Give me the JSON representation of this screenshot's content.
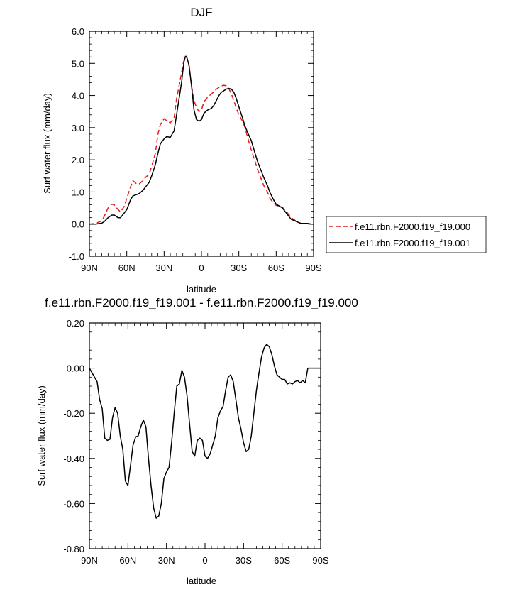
{
  "chart_data": [
    {
      "type": "line",
      "title": "DJF",
      "xlabel": "latitude",
      "ylabel": "Surf water flux (mm/day)",
      "xlim": [
        90,
        -90
      ],
      "ylim": [
        -1.0,
        6.0
      ],
      "xticks": [
        90,
        60,
        30,
        0,
        -30,
        -60,
        -90
      ],
      "xtick_labels": [
        "90N",
        "60N",
        "30N",
        "0",
        "30S",
        "60S",
        "90S"
      ],
      "yticks": [
        -1.0,
        0.0,
        1.0,
        2.0,
        3.0,
        4.0,
        5.0,
        6.0
      ],
      "ytick_labels": [
        "-1.0",
        "0.0",
        "1.0",
        "2.0",
        "3.0",
        "4.0",
        "5.0",
        "6.0"
      ],
      "legend_position": "right",
      "series": [
        {
          "name": "f.e11.rbn.F2000.f19_f19.000",
          "color": "#e41a1c",
          "dash": "dashed",
          "x": [
            90,
            85,
            80,
            78,
            75,
            72,
            70,
            67,
            65,
            62,
            60,
            57,
            55,
            52,
            50,
            47,
            45,
            42,
            40,
            37,
            35,
            33,
            30,
            28,
            25,
            22,
            20,
            18,
            16,
            15,
            14,
            13,
            12,
            10,
            8,
            6,
            4,
            2,
            0,
            -2,
            -5,
            -8,
            -10,
            -12,
            -14,
            -16,
            -18,
            -20,
            -22,
            -24,
            -26,
            -28,
            -30,
            -33,
            -35,
            -37,
            -40,
            -43,
            -45,
            -48,
            -50,
            -53,
            -55,
            -58,
            -60,
            -63,
            -65,
            -68,
            -70,
            -72,
            -75,
            -78,
            -80,
            -83,
            -85,
            -88,
            -90
          ],
          "y": [
            0.0,
            0.02,
            0.1,
            0.25,
            0.5,
            0.62,
            0.6,
            0.45,
            0.38,
            0.55,
            0.8,
            1.15,
            1.35,
            1.25,
            1.25,
            1.35,
            1.45,
            1.55,
            1.8,
            2.2,
            2.8,
            3.1,
            3.28,
            3.22,
            3.15,
            3.3,
            3.9,
            4.3,
            4.7,
            4.95,
            5.1,
            5.22,
            5.2,
            4.95,
            4.3,
            3.85,
            3.62,
            3.5,
            3.55,
            3.8,
            3.95,
            4.05,
            4.12,
            4.2,
            4.25,
            4.3,
            4.32,
            4.3,
            4.22,
            4.05,
            3.85,
            3.6,
            3.4,
            3.2,
            3.0,
            2.7,
            2.3,
            1.95,
            1.7,
            1.4,
            1.2,
            1.0,
            0.8,
            0.65,
            0.58,
            0.55,
            0.52,
            0.4,
            0.3,
            0.2,
            0.12,
            0.05,
            0.02,
            0.02,
            0.02,
            0.0,
            0.0
          ]
        },
        {
          "name": "f.e11.rbn.F2000.f19_f19.001",
          "color": "#000000",
          "dash": "solid",
          "x": [
            90,
            85,
            80,
            78,
            75,
            72,
            70,
            67,
            65,
            62,
            60,
            57,
            55,
            52,
            50,
            47,
            45,
            42,
            40,
            37,
            35,
            33,
            30,
            28,
            25,
            22,
            20,
            18,
            16,
            15,
            14,
            13,
            12,
            10,
            8,
            6,
            4,
            2,
            0,
            -2,
            -5,
            -8,
            -10,
            -12,
            -14,
            -16,
            -18,
            -20,
            -22,
            -24,
            -26,
            -28,
            -30,
            -33,
            -35,
            -37,
            -40,
            -43,
            -45,
            -48,
            -50,
            -53,
            -55,
            -58,
            -60,
            -63,
            -65,
            -68,
            -70,
            -72,
            -75,
            -78,
            -80,
            -83,
            -85,
            -88,
            -90
          ],
          "y": [
            0.0,
            0.0,
            0.03,
            0.08,
            0.2,
            0.28,
            0.28,
            0.2,
            0.2,
            0.35,
            0.45,
            0.75,
            0.88,
            0.92,
            0.95,
            1.05,
            1.15,
            1.3,
            1.5,
            1.85,
            2.2,
            2.5,
            2.65,
            2.72,
            2.7,
            2.9,
            3.4,
            3.9,
            4.4,
            4.75,
            5.05,
            5.2,
            5.22,
            4.95,
            4.3,
            3.55,
            3.25,
            3.2,
            3.25,
            3.45,
            3.55,
            3.6,
            3.7,
            3.85,
            4.0,
            4.1,
            4.15,
            4.2,
            4.22,
            4.2,
            4.1,
            3.9,
            3.65,
            3.3,
            3.05,
            2.85,
            2.6,
            2.2,
            1.95,
            1.65,
            1.45,
            1.2,
            0.98,
            0.75,
            0.62,
            0.55,
            0.5,
            0.35,
            0.25,
            0.15,
            0.1,
            0.05,
            0.02,
            0.02,
            0.02,
            0.0,
            0.0
          ]
        }
      ]
    },
    {
      "type": "line",
      "title": "f.e11.rbn.F2000.f19_f19.001 - f.e11.rbn.F2000.f19_f19.000",
      "xlabel": "latitude",
      "ylabel": "Surf water flux (mm/day)",
      "xlim": [
        90,
        -90
      ],
      "ylim": [
        -0.8,
        0.2
      ],
      "xticks": [
        90,
        60,
        30,
        0,
        -30,
        -60,
        -90
      ],
      "xtick_labels": [
        "90N",
        "60N",
        "30N",
        "0",
        "30S",
        "60S",
        "90S"
      ],
      "yticks": [
        -0.8,
        -0.6,
        -0.4,
        -0.2,
        0.0,
        0.2
      ],
      "ytick_labels": [
        "-0.80",
        "-0.60",
        "-0.40",
        "-0.20",
        "0.00",
        "0.20"
      ],
      "series": [
        {
          "name": "",
          "color": "#000000",
          "dash": "solid",
          "x": [
            90,
            88,
            86,
            84,
            82,
            80,
            78,
            76,
            74,
            72,
            70,
            68,
            66,
            64,
            62,
            60,
            58,
            56,
            54,
            52,
            50,
            48,
            46,
            44,
            42,
            40,
            38,
            36,
            34,
            32,
            30,
            28,
            26,
            24,
            22,
            20,
            18,
            16,
            14,
            12,
            10,
            8,
            6,
            4,
            2,
            0,
            -2,
            -4,
            -6,
            -8,
            -10,
            -12,
            -14,
            -16,
            -18,
            -20,
            -22,
            -24,
            -26,
            -28,
            -30,
            -32,
            -34,
            -36,
            -38,
            -40,
            -42,
            -44,
            -46,
            -48,
            -50,
            -52,
            -54,
            -56,
            -58,
            -60,
            -62,
            -64,
            -66,
            -68,
            -70,
            -72,
            -74,
            -76,
            -78,
            -80,
            -85,
            -90
          ],
          "y": [
            0.0,
            -0.02,
            -0.04,
            -0.06,
            -0.14,
            -0.18,
            -0.31,
            -0.32,
            -0.315,
            -0.22,
            -0.175,
            -0.2,
            -0.3,
            -0.36,
            -0.5,
            -0.52,
            -0.43,
            -0.34,
            -0.305,
            -0.3,
            -0.26,
            -0.23,
            -0.26,
            -0.4,
            -0.52,
            -0.62,
            -0.665,
            -0.655,
            -0.6,
            -0.49,
            -0.46,
            -0.44,
            -0.33,
            -0.2,
            -0.08,
            -0.07,
            -0.01,
            -0.04,
            -0.12,
            -0.25,
            -0.37,
            -0.39,
            -0.32,
            -0.31,
            -0.32,
            -0.39,
            -0.4,
            -0.38,
            -0.34,
            -0.3,
            -0.22,
            -0.19,
            -0.17,
            -0.1,
            -0.04,
            -0.03,
            -0.06,
            -0.14,
            -0.22,
            -0.27,
            -0.33,
            -0.37,
            -0.36,
            -0.3,
            -0.2,
            -0.1,
            -0.02,
            0.05,
            0.09,
            0.105,
            0.095,
            0.06,
            0.01,
            -0.03,
            -0.04,
            -0.05,
            -0.05,
            -0.07,
            -0.065,
            -0.07,
            -0.06,
            -0.055,
            -0.065,
            -0.055,
            -0.065,
            0.0,
            0.0,
            0.0
          ]
        }
      ]
    }
  ]
}
